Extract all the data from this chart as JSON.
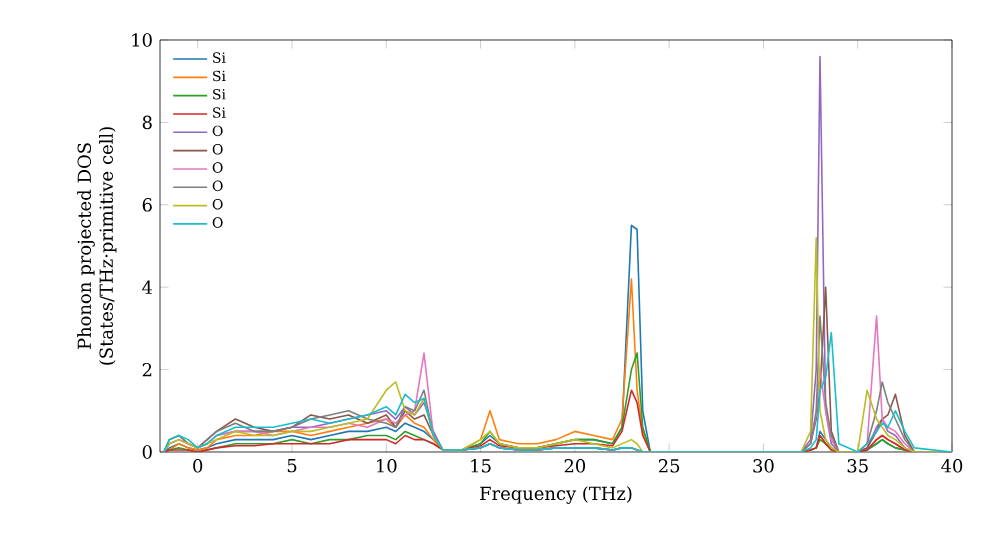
{
  "chart_data": {
    "type": "line",
    "xlabel": "Frequency (THz)",
    "ylabel": "Phonon projected DOS (States/THz·primitive cell)",
    "x": [
      -1.8,
      -1.5,
      -1,
      -0.5,
      0,
      0.5,
      1,
      2,
      3,
      4,
      5,
      6,
      7,
      8,
      9,
      10,
      10.5,
      11,
      11.5,
      12,
      12.5,
      13,
      14,
      15,
      15.5,
      16,
      17,
      18,
      19,
      20,
      21,
      22,
      22.5,
      23,
      23.3,
      23.6,
      24,
      25,
      32,
      32.5,
      32.8,
      33,
      33.3,
      33.6,
      34,
      35,
      35.5,
      36,
      36.3,
      36.6,
      37,
      37.5,
      38,
      40
    ],
    "xlim": [
      -2,
      40
    ],
    "xticks": [
      0,
      5,
      10,
      15,
      20,
      25,
      30,
      35,
      40
    ],
    "ylim": [
      0,
      10
    ],
    "yticks": [
      0,
      2,
      4,
      6,
      8,
      10
    ],
    "grid": false,
    "legend": "top left",
    "marker": "none",
    "line_style": "solid",
    "series": [
      {
        "name": "Si",
        "color": "#1f77b4",
        "values": [
          0,
          0.1,
          0.2,
          0.1,
          0.05,
          0.1,
          0.2,
          0.3,
          0.3,
          0.3,
          0.4,
          0.3,
          0.4,
          0.5,
          0.5,
          0.6,
          0.5,
          0.7,
          0.6,
          0.5,
          0.3,
          0.05,
          0.05,
          0.2,
          0.4,
          0.2,
          0.1,
          0.1,
          0.2,
          0.3,
          0.3,
          0.2,
          0.6,
          5.5,
          5.4,
          1,
          0,
          0,
          0,
          0.05,
          0.1,
          0.5,
          0.3,
          0.1,
          0,
          0,
          0.05,
          0.2,
          0.3,
          0.2,
          0.1,
          0.05,
          0,
          0
        ]
      },
      {
        "name": "Si",
        "color": "#ff7f0e",
        "values": [
          0,
          0.05,
          0.2,
          0.1,
          0.05,
          0.1,
          0.3,
          0.4,
          0.4,
          0.5,
          0.5,
          0.4,
          0.5,
          0.6,
          0.7,
          0.8,
          0.6,
          0.9,
          0.7,
          0.6,
          0.3,
          0.05,
          0.05,
          0.3,
          1.0,
          0.3,
          0.2,
          0.2,
          0.3,
          0.5,
          0.4,
          0.3,
          0.8,
          4.2,
          1.5,
          0.5,
          0,
          0,
          0,
          0.05,
          0.1,
          0.4,
          0.2,
          0.1,
          0,
          0,
          0.05,
          0.3,
          0.4,
          0.3,
          0.2,
          0.05,
          0,
          0
        ]
      },
      {
        "name": "Si",
        "color": "#2ca02c",
        "values": [
          0,
          0.05,
          0.1,
          0.05,
          0,
          0.05,
          0.1,
          0.2,
          0.2,
          0.2,
          0.3,
          0.2,
          0.3,
          0.3,
          0.4,
          0.4,
          0.3,
          0.5,
          0.4,
          0.3,
          0.2,
          0.05,
          0.05,
          0.2,
          0.5,
          0.2,
          0.1,
          0.1,
          0.2,
          0.3,
          0.3,
          0.2,
          0.6,
          2.0,
          2.4,
          0.6,
          0,
          0,
          0,
          0.05,
          0.1,
          0.3,
          0.2,
          0.05,
          0,
          0,
          0.05,
          0.2,
          0.3,
          0.2,
          0.1,
          0.05,
          0,
          0
        ]
      },
      {
        "name": "Si",
        "color": "#d62728",
        "values": [
          0,
          0.05,
          0.05,
          0.05,
          0,
          0.05,
          0.1,
          0.15,
          0.15,
          0.2,
          0.2,
          0.2,
          0.2,
          0.3,
          0.3,
          0.3,
          0.2,
          0.4,
          0.3,
          0.3,
          0.2,
          0.05,
          0.05,
          0.15,
          0.3,
          0.15,
          0.1,
          0.1,
          0.15,
          0.2,
          0.2,
          0.15,
          0.5,
          1.5,
          1.2,
          0.4,
          0,
          0,
          0,
          0.05,
          0.1,
          0.4,
          0.2,
          0.05,
          0,
          0,
          0.05,
          0.3,
          0.4,
          0.3,
          0.2,
          0.05,
          0,
          0
        ]
      },
      {
        "name": "O",
        "color": "#9467bd",
        "values": [
          0,
          0.2,
          0.3,
          0.2,
          0.1,
          0.2,
          0.4,
          0.5,
          0.5,
          0.5,
          0.6,
          0.6,
          0.7,
          0.8,
          0.9,
          1.0,
          0.8,
          1.1,
          0.9,
          1.2,
          0.5,
          0.05,
          0.05,
          0.1,
          0.2,
          0.1,
          0.05,
          0.05,
          0.1,
          0.1,
          0.1,
          0.05,
          0.1,
          0.1,
          0.05,
          0,
          0,
          0,
          0,
          0.3,
          2.0,
          9.6,
          1.0,
          0.2,
          0,
          0,
          0.1,
          0.6,
          0.8,
          0.5,
          0.4,
          0.1,
          0,
          0
        ]
      },
      {
        "name": "O",
        "color": "#8c564b",
        "values": [
          0,
          0.3,
          0.4,
          0.2,
          0.1,
          0.3,
          0.5,
          0.8,
          0.6,
          0.5,
          0.6,
          0.9,
          0.8,
          0.9,
          0.7,
          0.9,
          0.6,
          1.0,
          0.8,
          0.9,
          0.4,
          0.05,
          0.05,
          0.1,
          0.2,
          0.1,
          0.05,
          0.05,
          0.1,
          0.1,
          0.1,
          0.05,
          0.1,
          0.1,
          0.05,
          0,
          0,
          0,
          0,
          0.2,
          0.8,
          1.5,
          4.0,
          0.5,
          0,
          0,
          0.1,
          0.5,
          0.8,
          0.9,
          1.4,
          0.4,
          0,
          0
        ]
      },
      {
        "name": "O",
        "color": "#e377c2",
        "values": [
          null,
          null,
          0.3,
          0.2,
          0.1,
          0.2,
          0.4,
          0.5,
          0.5,
          0.4,
          0.5,
          0.6,
          0.6,
          0.7,
          0.6,
          0.8,
          0.7,
          0.9,
          1.0,
          2.4,
          0.4,
          0.05,
          0.05,
          0.1,
          0.2,
          0.1,
          0.05,
          0.05,
          0.1,
          0.1,
          0.1,
          0.05,
          0.1,
          0.1,
          0.05,
          0,
          0,
          0,
          0,
          0.2,
          0.9,
          2.0,
          1.0,
          0.3,
          0,
          0,
          0.2,
          3.3,
          0.8,
          0.6,
          0.5,
          0.2,
          0,
          0
        ]
      },
      {
        "name": "O",
        "color": "#7f7f7f",
        "values": [
          0,
          0.3,
          0.4,
          0.2,
          0.1,
          0.3,
          0.5,
          0.7,
          0.5,
          0.5,
          0.6,
          0.8,
          0.9,
          1.0,
          0.8,
          0.7,
          0.6,
          1.1,
          1.0,
          1.5,
          0.4,
          0.05,
          0.05,
          0.1,
          0.2,
          0.1,
          0.05,
          0.05,
          0.1,
          0.1,
          0.1,
          0.05,
          0.1,
          0.1,
          0.05,
          0,
          0,
          0,
          0,
          0.2,
          1.0,
          3.3,
          1.2,
          0.4,
          0,
          0,
          0.2,
          1.0,
          1.7,
          1.2,
          0.8,
          0.3,
          0,
          0
        ]
      },
      {
        "name": "O",
        "color": "#bcbd22",
        "values": [
          0,
          0.2,
          0.3,
          0.2,
          0.1,
          0.2,
          0.3,
          0.5,
          0.4,
          0.4,
          0.5,
          0.5,
          0.6,
          0.7,
          0.8,
          1.5,
          1.7,
          1.0,
          0.9,
          1.3,
          0.4,
          0.05,
          0.05,
          0.3,
          0.5,
          0.2,
          0.1,
          0.1,
          0.2,
          0.3,
          0.2,
          0.1,
          0.2,
          0.3,
          0.2,
          0,
          0,
          0,
          0,
          0.5,
          5.2,
          1.0,
          0.3,
          0.1,
          0,
          0,
          1.5,
          0.8,
          0.6,
          0.4,
          0.3,
          0.1,
          0,
          0
        ]
      },
      {
        "name": "O",
        "color": "#17becf",
        "values": [
          0,
          0.3,
          0.4,
          0.3,
          0.1,
          0.2,
          0.4,
          0.6,
          0.6,
          0.6,
          0.7,
          0.8,
          0.7,
          0.8,
          0.9,
          1.1,
          0.9,
          1.4,
          1.2,
          1.3,
          0.4,
          0.05,
          0.05,
          0.1,
          0.2,
          0.1,
          0.05,
          0.05,
          0.1,
          0.1,
          0.1,
          0.05,
          0.1,
          0.1,
          0.05,
          0,
          0,
          0,
          0,
          0.1,
          0.3,
          1.5,
          1.8,
          2.9,
          0.2,
          0,
          0.2,
          0.5,
          0.7,
          0.6,
          1.0,
          0.5,
          0.1,
          0
        ]
      }
    ]
  }
}
